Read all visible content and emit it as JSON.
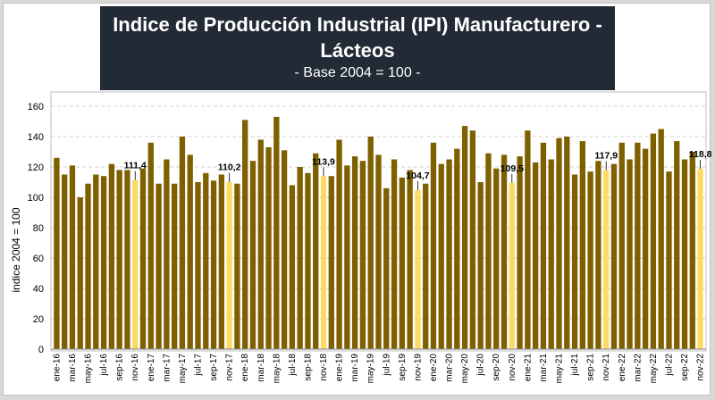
{
  "chart_data": {
    "type": "bar",
    "title_line1": "Indice de Producción Industrial (IPI) Manufacturero -",
    "title_line2": "Lácteos",
    "subtitle": "- Base 2004 = 100 -",
    "ylabel": "indice 2004 = 100",
    "xlabel": "",
    "ylim": [
      0,
      170
    ],
    "yticks": [
      0,
      20,
      40,
      60,
      80,
      100,
      120,
      140,
      160
    ],
    "grid": true,
    "colors": {
      "normal": "#7f6000",
      "highlight": "#ffd966",
      "gridline": "#d0d0d0"
    },
    "categories": [
      "ene-16",
      "feb-16",
      "mar-16",
      "abr-16",
      "may-16",
      "jun-16",
      "jul-16",
      "ago-16",
      "sep-16",
      "oct-16",
      "nov-16",
      "dic-16",
      "ene-17",
      "feb-17",
      "mar-17",
      "abr-17",
      "may-17",
      "jun-17",
      "jul-17",
      "ago-17",
      "sep-17",
      "oct-17",
      "nov-17",
      "dic-17",
      "ene-18",
      "feb-18",
      "mar-18",
      "abr-18",
      "may-18",
      "jun-18",
      "jul-18",
      "ago-18",
      "sep-18",
      "oct-18",
      "nov-18",
      "dic-18",
      "ene-19",
      "feb-19",
      "mar-19",
      "abr-19",
      "may-19",
      "jun-19",
      "jul-19",
      "ago-19",
      "sep-19",
      "oct-19",
      "nov-19",
      "dic-19",
      "ene-20",
      "feb-20",
      "mar-20",
      "abr-20",
      "may-20",
      "jun-20",
      "jul-20",
      "ago-20",
      "sep-20",
      "oct-20",
      "nov-20",
      "dic-20",
      "ene-21",
      "feb-21",
      "mar-21",
      "abr-21",
      "may-21",
      "jun-21",
      "jul-21",
      "ago-21",
      "sep-21",
      "oct-21",
      "nov-21",
      "dic-21",
      "ene-22",
      "feb-22",
      "mar-22",
      "abr-22",
      "may-22",
      "jun-22",
      "jul-22",
      "ago-22",
      "sep-22",
      "oct-22",
      "nov-22"
    ],
    "values": [
      126,
      115,
      121,
      100,
      109,
      115,
      114,
      122,
      118,
      118,
      111.4,
      119,
      136,
      109,
      125,
      109,
      140,
      128,
      110,
      116,
      111,
      115,
      110.2,
      109,
      151,
      124,
      138,
      133,
      153,
      131,
      108,
      120,
      116,
      129,
      113.9,
      114,
      138,
      121,
      127,
      124,
      140,
      128,
      106,
      125,
      113,
      118,
      104.7,
      109,
      136,
      122,
      125,
      132,
      147,
      144,
      110,
      129,
      119,
      128,
      109.5,
      127,
      144,
      123,
      136,
      125,
      139,
      140,
      115,
      137,
      117,
      124,
      117.9,
      122,
      136,
      125,
      136,
      132,
      142,
      145,
      117,
      137,
      125,
      130,
      118.8
    ],
    "highlighted": [
      "nov-16",
      "nov-17",
      "nov-18",
      "nov-19",
      "nov-20",
      "nov-21",
      "nov-22"
    ],
    "labels": [
      "111,4",
      "110,2",
      "113,9",
      "104,7",
      "109,5",
      "117,9",
      "118,8"
    ],
    "xtick_labels": [
      "ene-16",
      "mar-16",
      "may-16",
      "jul-16",
      "sep-16",
      "nov-16",
      "ene-17",
      "mar-17",
      "may-17",
      "jul-17",
      "sep-17",
      "nov-17",
      "ene-18",
      "mar-18",
      "may-18",
      "jul-18",
      "sep-18",
      "nov-18",
      "ene-19",
      "mar-19",
      "may-19",
      "jul-19",
      "sep-19",
      "nov-19",
      "ene-20",
      "mar-20",
      "may-20",
      "jul-20",
      "sep-20",
      "nov-20",
      "ene-21",
      "mar-21",
      "may-21",
      "jul-21",
      "sep-21",
      "nov-21",
      "ene-22",
      "mar-22",
      "may-22",
      "jul-22",
      "sep-22",
      "nov-22"
    ]
  }
}
